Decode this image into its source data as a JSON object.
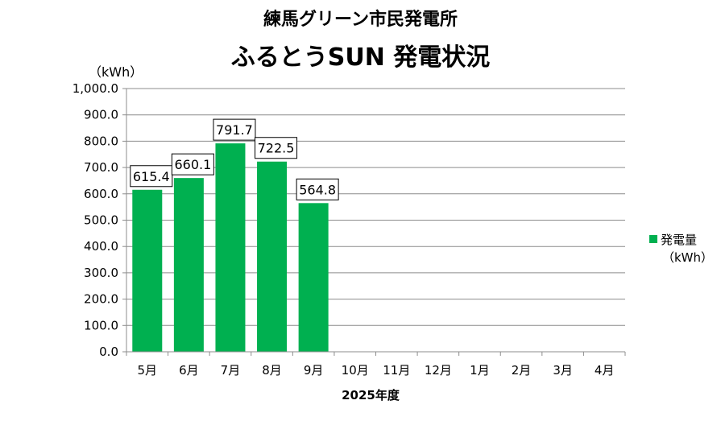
{
  "header": {
    "title_line1": "練馬グリーン市民発電所",
    "title_line2": "ふるとうSUN 発電状況"
  },
  "chart_data": {
    "type": "bar",
    "title": "練馬グリーン市民発電所 ふるとうSUN 発電状況",
    "ylabel": "（kWh）",
    "xlabel": "2025年度",
    "categories": [
      "5月",
      "6月",
      "7月",
      "8月",
      "9月",
      "10月",
      "11月",
      "12月",
      "1月",
      "2月",
      "3月",
      "4月"
    ],
    "series": [
      {
        "name": "発電量",
        "values": [
          615.4,
          660.1,
          791.7,
          722.5,
          564.8,
          null,
          null,
          null,
          null,
          null,
          null,
          null
        ],
        "color": "#00b050"
      }
    ],
    "data_labels": [
      "615.4",
      "660.1",
      "791.7",
      "722.5",
      "564.8"
    ],
    "ylim": [
      0,
      1000
    ],
    "yticks": [
      "0.0",
      "100.0",
      "200.0",
      "300.0",
      "400.0",
      "500.0",
      "600.0",
      "700.0",
      "800.0",
      "900.0",
      "1,000.0"
    ],
    "grid": true,
    "legend": {
      "position": "right",
      "label": "発電量",
      "unit": "（kWh）"
    }
  }
}
